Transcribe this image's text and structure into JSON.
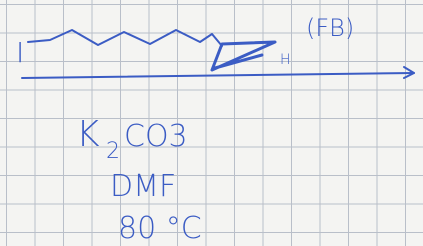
{
  "substrate": {
    "halide": "I",
    "terminal": "H",
    "note": "(FB)"
  },
  "conditions": {
    "reagent": [
      "K",
      "2",
      "CO3"
    ],
    "solvent": "DMF",
    "temperature": "80 °C"
  }
}
